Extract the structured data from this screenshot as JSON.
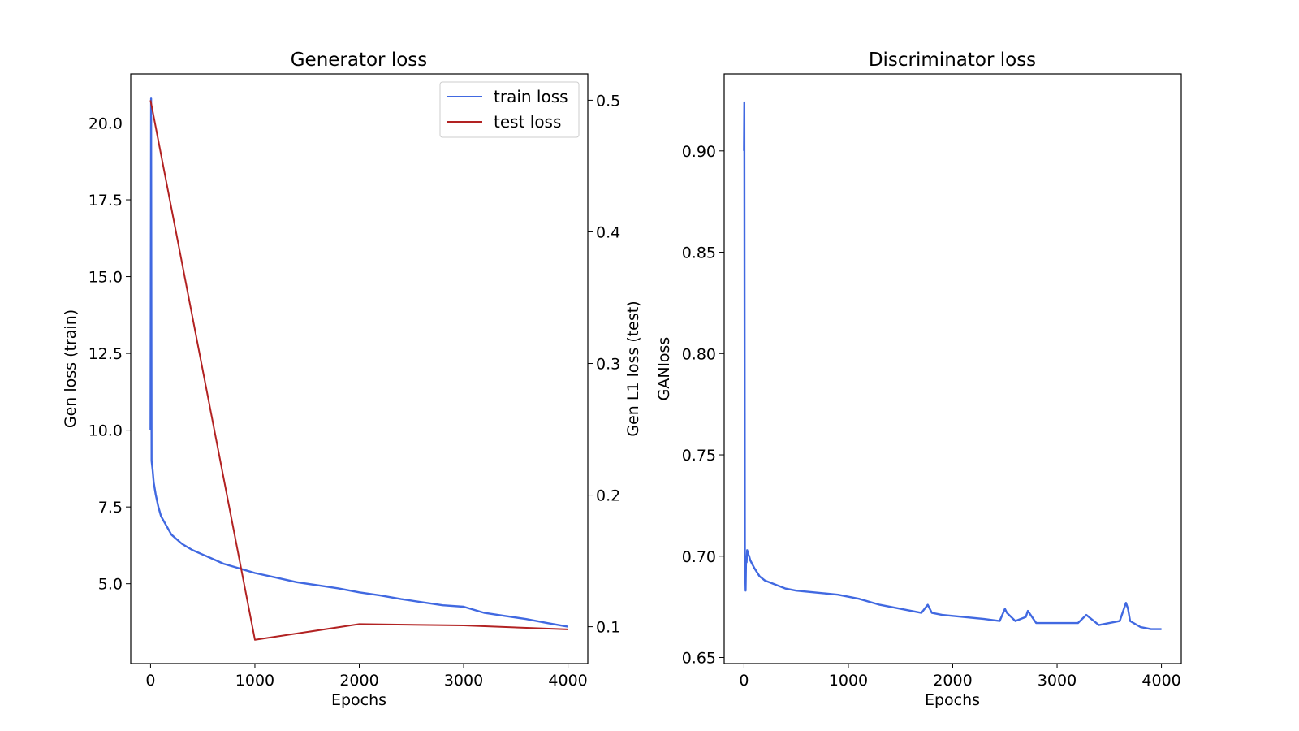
{
  "chart_data": [
    {
      "type": "line",
      "title": "Generator loss",
      "xlabel": "Epochs",
      "ylabel": "Gen loss (train)",
      "ylabel_right": "Gen L1 loss (test)",
      "xlim": [
        -190,
        4190
      ],
      "ylim": [
        2.4,
        21.6
      ],
      "ylim_right": [
        0.072,
        0.52
      ],
      "xticks": [
        0,
        1000,
        2000,
        3000,
        4000
      ],
      "xtick_labels": [
        "0",
        "1000",
        "2000",
        "3000",
        "4000"
      ],
      "yticks": [
        5.0,
        7.5,
        10.0,
        12.5,
        15.0,
        17.5,
        20.0
      ],
      "ytick_labels": [
        "5.0",
        "7.5",
        "10.0",
        "12.5",
        "15.0",
        "17.5",
        "20.0"
      ],
      "yticks_right": [
        0.1,
        0.2,
        0.3,
        0.4,
        0.5
      ],
      "ytick_labels_right": [
        "0.1",
        "0.2",
        "0.3",
        "0.4",
        "0.5"
      ],
      "grid": false,
      "legend_position": "top-right",
      "series": [
        {
          "name": "train loss",
          "axis": "left",
          "color": "#4169e1",
          "x": [
            0,
            5,
            10,
            20,
            30,
            50,
            75,
            100,
            150,
            200,
            300,
            400,
            500,
            600,
            700,
            800,
            900,
            1000,
            1200,
            1400,
            1600,
            1800,
            2000,
            2200,
            2400,
            2600,
            2800,
            3000,
            3200,
            3400,
            3600,
            3800,
            4000
          ],
          "values": [
            10.0,
            20.8,
            9.0,
            8.7,
            8.3,
            7.9,
            7.5,
            7.2,
            6.9,
            6.6,
            6.3,
            6.1,
            5.95,
            5.8,
            5.65,
            5.55,
            5.45,
            5.35,
            5.2,
            5.05,
            4.95,
            4.85,
            4.72,
            4.62,
            4.5,
            4.4,
            4.3,
            4.25,
            4.05,
            3.95,
            3.85,
            3.72,
            3.6
          ]
        },
        {
          "name": "test loss",
          "axis": "right",
          "color": "#b22222",
          "x": [
            0,
            1000,
            2000,
            3000,
            4000
          ],
          "values": [
            0.5,
            0.09,
            0.102,
            0.101,
            0.098
          ]
        }
      ]
    },
    {
      "type": "line",
      "title": "Discriminator loss",
      "xlabel": "Epochs",
      "ylabel": "GANloss",
      "xlim": [
        -190,
        4190
      ],
      "ylim": [
        0.647,
        0.938
      ],
      "xticks": [
        0,
        1000,
        2000,
        3000,
        4000
      ],
      "xtick_labels": [
        "0",
        "1000",
        "2000",
        "3000",
        "4000"
      ],
      "yticks": [
        0.65,
        0.7,
        0.75,
        0.8,
        0.85,
        0.9
      ],
      "ytick_labels": [
        "0.65",
        "0.70",
        "0.75",
        "0.80",
        "0.85",
        "0.90"
      ],
      "grid": false,
      "series": [
        {
          "color": "#4169e1",
          "x": [
            0,
            3,
            8,
            15,
            20,
            25,
            30,
            40,
            50,
            60,
            80,
            100,
            150,
            200,
            300,
            400,
            500,
            700,
            900,
            1100,
            1300,
            1500,
            1700,
            1760,
            1800,
            1900,
            2100,
            2300,
            2450,
            2500,
            2520,
            2600,
            2700,
            2720,
            2800,
            3000,
            3200,
            3280,
            3400,
            3600,
            3660,
            3680,
            3700,
            3800,
            3900,
            4000
          ],
          "values": [
            0.9,
            0.924,
            0.7,
            0.683,
            0.7,
            0.697,
            0.703,
            0.701,
            0.7,
            0.698,
            0.696,
            0.694,
            0.69,
            0.688,
            0.686,
            0.684,
            0.683,
            0.682,
            0.681,
            0.679,
            0.676,
            0.674,
            0.672,
            0.676,
            0.672,
            0.671,
            0.67,
            0.669,
            0.668,
            0.674,
            0.672,
            0.668,
            0.67,
            0.673,
            0.667,
            0.667,
            0.667,
            0.671,
            0.666,
            0.668,
            0.677,
            0.674,
            0.668,
            0.665,
            0.664,
            0.664
          ]
        }
      ]
    }
  ]
}
